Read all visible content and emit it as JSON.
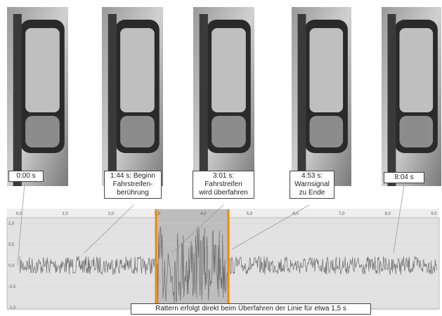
{
  "captions": [
    {
      "lines": [
        "0:00 s"
      ]
    },
    {
      "lines": [
        "1:44 s: Beginn",
        "Fahrstreifen-",
        "berührung"
      ]
    },
    {
      "lines": [
        "3:01 s:",
        "Fahrstreifen",
        "wird überfahren"
      ]
    },
    {
      "lines": [
        "4:53 s:",
        "Warnsignal",
        "zu Ende"
      ]
    },
    {
      "lines": [
        "8:04 s"
      ]
    }
  ],
  "chart": {
    "x_ticks": [
      "0,0",
      "1,0",
      "2,0",
      "3,0",
      "4,0",
      "5,0",
      "6,0",
      "7,0",
      "8,0",
      "9,0"
    ],
    "y_ticks": [
      "1,0",
      "0,5",
      "0,0",
      "-0,5",
      "-1,0"
    ]
  },
  "annotation": "Rattern erfolgt direkt beim Überfahren der Linie für etwa 1,5 s"
}
